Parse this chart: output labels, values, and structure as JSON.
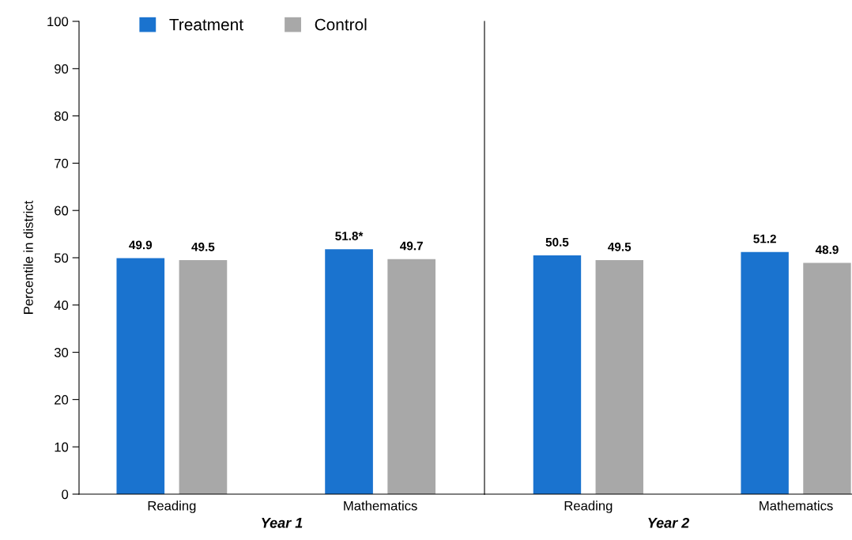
{
  "chart_data": [
    {
      "type": "bar",
      "xlabel": "Year 1",
      "ylabel": "Percentile in district",
      "categories": [
        "Reading",
        "Mathematics"
      ],
      "series": [
        {
          "name": "Treatment",
          "color": "#1a73cf",
          "values": [
            49.9,
            51.8
          ],
          "value_labels": [
            "49.9",
            "51.8*"
          ]
        },
        {
          "name": "Control",
          "color": "#a8a8a8",
          "values": [
            49.5,
            49.7
          ],
          "value_labels": [
            "49.5",
            "49.7"
          ]
        }
      ],
      "ylim": [
        0,
        100
      ],
      "yticks": [
        0,
        10,
        20,
        30,
        40,
        50,
        60,
        70,
        80,
        90,
        100
      ],
      "legend": "top",
      "grid": false
    },
    {
      "type": "bar",
      "xlabel": "Year 2",
      "categories": [
        "Reading",
        "Mathematics"
      ],
      "series": [
        {
          "color": "#1a73cf",
          "values": [
            50.5,
            51.2
          ],
          "value_labels": [
            "50.5",
            "51.2"
          ]
        },
        {
          "color": "#a8a8a8",
          "values": [
            49.5,
            48.9
          ],
          "value_labels": [
            "49.5",
            "48.9"
          ]
        }
      ],
      "ylim": [
        0,
        100
      ],
      "tick_labels": "x",
      "grid": false
    }
  ]
}
